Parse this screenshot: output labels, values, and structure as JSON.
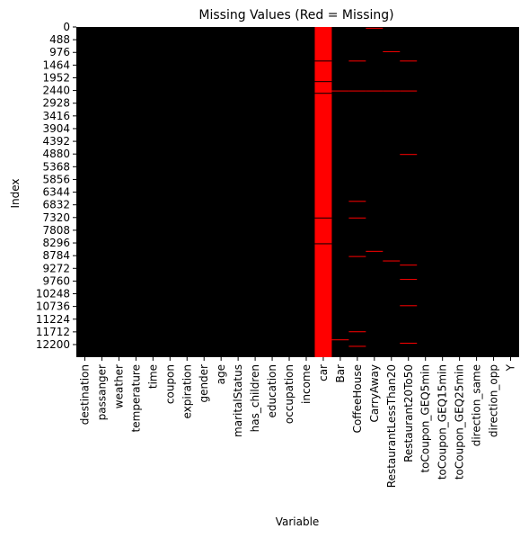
{
  "chart_data": {
    "type": "heatmap",
    "title": "Missing Values (Red = Missing)",
    "xlabel": "Variable",
    "ylabel": "Index",
    "n_rows": 12684,
    "colors": {
      "present": "#000000",
      "missing": "#ff0000"
    },
    "columns": [
      "destination",
      "passanger",
      "weather",
      "temperature",
      "time",
      "coupon",
      "expiration",
      "gender",
      "age",
      "maritalStatus",
      "has_children",
      "education",
      "occupation",
      "income",
      "car",
      "Bar",
      "CoffeeHouse",
      "CarryAway",
      "RestaurantLessThan20",
      "Restaurant20To50",
      "toCoupon_GEQ5min",
      "toCoupon_GEQ15min",
      "toCoupon_GEQ25min",
      "direction_same",
      "direction_opp",
      "Y"
    ],
    "y_ticks": [
      "0",
      "488",
      "976",
      "1464",
      "1952",
      "2440",
      "2928",
      "3416",
      "3904",
      "4392",
      "4880",
      "5368",
      "5856",
      "6344",
      "6832",
      "7320",
      "7808",
      "8296",
      "8784",
      "9272",
      "9760",
      "10248",
      "10736",
      "11224",
      "11712",
      "12200"
    ],
    "y_tick_values": [
      0,
      488,
      976,
      1464,
      1952,
      2440,
      2928,
      3416,
      3904,
      4392,
      4880,
      5368,
      5856,
      6344,
      6832,
      7320,
      7808,
      8296,
      8784,
      9272,
      9760,
      10248,
      10736,
      11224,
      11712,
      12200
    ],
    "car_present_rows": [
      1290,
      2080,
      2530,
      7320,
      8310
    ],
    "missing_rows": [
      {
        "column": "Bar",
        "rows": [
          2440,
          12000
        ]
      },
      {
        "column": "CoffeeHouse",
        "rows": [
          1290,
          2440,
          6680,
          7320,
          8800,
          11690,
          12250
        ]
      },
      {
        "column": "CarryAway",
        "rows": [
          30,
          2440,
          8600
        ]
      },
      {
        "column": "RestaurantLessThan20",
        "rows": [
          930,
          2440,
          8970
        ]
      },
      {
        "column": "Restaurant20To50",
        "rows": [
          1290,
          2440,
          4880,
          9130,
          9680,
          10690,
          12130
        ]
      }
    ]
  }
}
